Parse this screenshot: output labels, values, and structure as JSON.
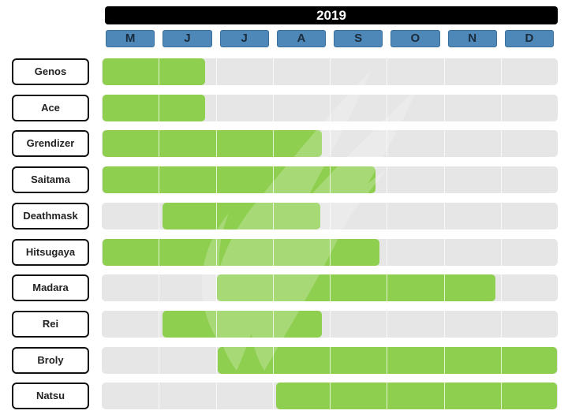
{
  "chart_data": {
    "type": "gantt",
    "title": "2019",
    "months": [
      "M",
      "J",
      "J",
      "A",
      "S",
      "O",
      "N",
      "D"
    ],
    "tasks": [
      {
        "name": "Genos",
        "start": 0.0,
        "end": 1.83
      },
      {
        "name": "Ace",
        "start": 0.0,
        "end": 1.83
      },
      {
        "name": "Grendizer",
        "start": 0.0,
        "end": 3.88
      },
      {
        "name": "Saitama",
        "start": 0.0,
        "end": 4.82
      },
      {
        "name": "Deathmask",
        "start": 1.05,
        "end": 3.85
      },
      {
        "name": "Hitsugaya",
        "start": 0.0,
        "end": 4.88
      },
      {
        "name": "Madara",
        "start": 2.0,
        "end": 6.92
      },
      {
        "name": "Rei",
        "start": 1.05,
        "end": 3.88
      },
      {
        "name": "Broly",
        "start": 2.02,
        "end": 8.0
      },
      {
        "name": "Natsu",
        "start": 3.05,
        "end": 8.0
      }
    ]
  },
  "colors": {
    "bar": "#8fcf4f",
    "track": "#e6e6e6",
    "month_header": "#4d88b8",
    "year_header": "#000000"
  }
}
